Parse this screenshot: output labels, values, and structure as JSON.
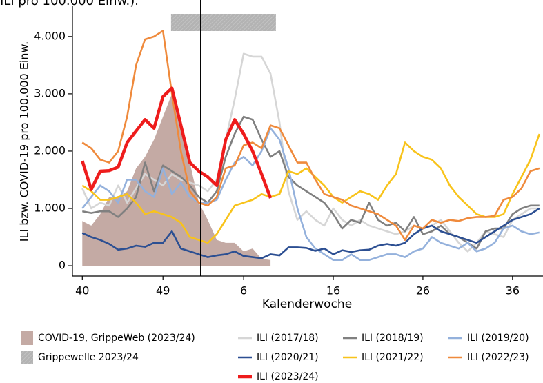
{
  "chart_data": {
    "type": "line",
    "title": "ILI pro 100.000 Einw.).",
    "x_label": "Kalenderwoche",
    "y_label": "ILI bzw. COVID-19 pro 100.000 Einw.",
    "x": [
      0,
      1,
      2,
      3,
      4,
      5,
      6,
      7,
      8,
      9,
      10,
      11,
      12,
      13,
      14,
      15,
      16,
      17,
      18,
      19,
      20,
      21,
      22,
      23,
      24,
      25,
      26,
      27,
      28,
      29,
      30,
      31,
      32,
      33,
      34,
      35,
      36,
      37,
      38,
      39,
      40,
      41,
      42,
      43,
      44,
      45,
      46,
      47,
      48,
      49,
      50,
      51
    ],
    "xlim": [
      -1.1,
      51.4
    ],
    "xticks": [
      {
        "value": 0,
        "label": "40"
      },
      {
        "value": 9,
        "label": "49"
      },
      {
        "value": 18,
        "label": "6"
      },
      {
        "value": 28,
        "label": "16"
      },
      {
        "value": 38,
        "label": "26"
      },
      {
        "value": 48,
        "label": "36"
      }
    ],
    "ylim": [
      -180,
      4540
    ],
    "yticks": [
      0,
      {
        "value": 1000,
        "label": "1.000"
      },
      {
        "value": 2000,
        "label": "2.000"
      },
      {
        "value": 3000,
        "label": "3.000"
      },
      {
        "value": 4000,
        "label": "4.000"
      }
    ],
    "band": {
      "name": "Grippewelle 2023/24",
      "color": "#b3b3b3",
      "x": [
        9.9,
        21.6
      ]
    },
    "vline": 13.2,
    "series": [
      {
        "name": "COVID-19, GrippeWeb (2023/24)",
        "kind": "area",
        "color": "#c4aaa4",
        "values": [
          780,
          700,
          900,
          1200,
          1200,
          1300,
          1700,
          1900,
          2200,
          2600,
          3000,
          2400,
          1800,
          1100,
          800,
          450,
          400,
          400,
          250,
          300,
          120,
          100,
          null,
          null,
          null,
          null,
          null,
          null,
          null,
          null,
          null,
          null,
          null,
          null,
          null,
          null,
          null,
          null,
          null,
          null,
          null,
          null,
          null,
          null,
          null,
          null,
          null,
          null,
          null,
          null,
          null,
          null
        ]
      },
      {
        "name": "ILI (2017/18)",
        "color": "#d6d6d6",
        "values": [
          1350,
          1000,
          1100,
          1050,
          1400,
          1100,
          1350,
          1600,
          1500,
          1400,
          1600,
          1500,
          1450,
          1400,
          1300,
          1500,
          2200,
          2900,
          3700,
          3650,
          3650,
          3350,
          2500,
          1300,
          800,
          950,
          800,
          700,
          1000,
          800,
          700,
          800,
          700,
          650,
          600,
          550,
          600,
          700,
          650,
          700,
          800,
          600,
          400,
          250,
          400,
          600,
          550,
          500,
          800,
          900,
          1000,
          1000
        ]
      },
      {
        "name": "ILI (2018/19)",
        "color": "#808080",
        "values": [
          950,
          920,
          950,
          950,
          850,
          1000,
          1200,
          1800,
          1300,
          1750,
          1650,
          1550,
          1400,
          1200,
          1100,
          1300,
          1900,
          2300,
          2600,
          2550,
          2200,
          1900,
          2000,
          1550,
          1400,
          1300,
          1200,
          1100,
          900,
          650,
          800,
          750,
          1100,
          800,
          700,
          750,
          600,
          850,
          550,
          600,
          700,
          550,
          500,
          400,
          300,
          600,
          650,
          650,
          900,
          1000,
          1050,
          1050
        ]
      },
      {
        "name": "ILI (2019/20)",
        "color": "#94b1dc",
        "values": [
          1000,
          1200,
          1400,
          1300,
          1100,
          1500,
          1500,
          1300,
          1200,
          1700,
          1250,
          1450,
          1200,
          1100,
          1100,
          1150,
          1500,
          1800,
          1900,
          1750,
          2000,
          2400,
          2200,
          1700,
          1000,
          500,
          300,
          200,
          100,
          100,
          200,
          100,
          100,
          150,
          200,
          200,
          150,
          250,
          300,
          500,
          400,
          350,
          300,
          400,
          250,
          300,
          400,
          650,
          700,
          600,
          550,
          580
        ]
      },
      {
        "name": "ILI (2020/21)",
        "color": "#2c4f92",
        "values": [
          570,
          500,
          450,
          380,
          280,
          300,
          350,
          330,
          400,
          400,
          600,
          300,
          250,
          200,
          150,
          180,
          200,
          250,
          170,
          150,
          130,
          200,
          180,
          320,
          320,
          310,
          260,
          300,
          200,
          270,
          240,
          270,
          280,
          350,
          380,
          350,
          400,
          550,
          650,
          700,
          600,
          550,
          500,
          450,
          400,
          500,
          600,
          700,
          800,
          850,
          900,
          1000
        ]
      },
      {
        "name": "ILI (2021/22)",
        "color": "#f8c31b",
        "values": [
          1400,
          1300,
          1150,
          1150,
          1200,
          1250,
          1100,
          900,
          950,
          900,
          850,
          750,
          500,
          450,
          400,
          550,
          800,
          1050,
          1100,
          1150,
          1250,
          1200,
          1250,
          1650,
          1600,
          1700,
          1550,
          1400,
          1200,
          1100,
          1200,
          1300,
          1250,
          1150,
          1400,
          1600,
          2150,
          2000,
          1900,
          1850,
          1700,
          1400,
          1200,
          1050,
          900,
          850,
          850,
          900,
          1250,
          1550,
          1850,
          2300
        ]
      },
      {
        "name": "ILI (2022/23)",
        "color": "#ef8a3c",
        "values": [
          2150,
          2050,
          1850,
          1800,
          2000,
          2600,
          3500,
          3950,
          4000,
          4100,
          3000,
          2000,
          1300,
          1100,
          1050,
          1200,
          1700,
          1750,
          2100,
          2150,
          2050,
          2450,
          2400,
          2100,
          1800,
          1800,
          1500,
          1250,
          1200,
          1150,
          1050,
          1000,
          950,
          900,
          800,
          700,
          450,
          700,
          650,
          800,
          750,
          800,
          780,
          830,
          850,
          850,
          870,
          1150,
          1200,
          1350,
          1650,
          1700
        ]
      },
      {
        "name": "ILI (2023/24)",
        "color": "#ee1c1c",
        "bold": true,
        "values": [
          1830,
          1330,
          1650,
          1660,
          1720,
          2150,
          2350,
          2550,
          2400,
          2950,
          3100,
          2450,
          1800,
          1650,
          1550,
          1400,
          2200,
          2550,
          2300,
          2000,
          1600,
          1180,
          null,
          null,
          null,
          null,
          null,
          null,
          null,
          null,
          null,
          null,
          null,
          null,
          null,
          null,
          null,
          null,
          null,
          null,
          null,
          null,
          null,
          null,
          null,
          null,
          null,
          null,
          null,
          null,
          null,
          null
        ]
      }
    ]
  }
}
